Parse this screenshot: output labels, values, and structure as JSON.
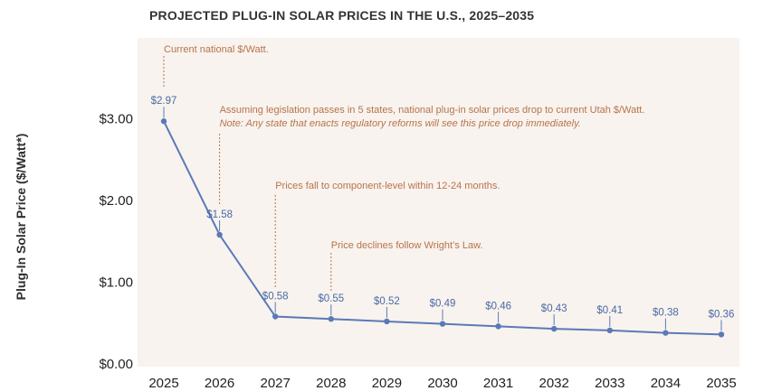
{
  "chart_data": {
    "type": "line",
    "title": "PROJECTED PLUG-IN SOLAR PRICES IN THE U.S., 2025–2035",
    "ylabel": "Plug-In Solar Price ($/Watt*)",
    "xlabel": "",
    "x": [
      "2025",
      "2026",
      "2027",
      "2028",
      "2029",
      "2030",
      "2031",
      "2032",
      "2033",
      "2034",
      "2035"
    ],
    "series": [
      {
        "values": [
          2.97,
          1.58,
          0.58,
          0.55,
          0.52,
          0.49,
          0.46,
          0.43,
          0.41,
          0.38,
          0.36
        ],
        "labels": [
          "$2.97",
          "$1.58",
          "$0.58",
          "$0.55",
          "$0.52",
          "$0.49",
          "$0.46",
          "$0.43",
          "$0.41",
          "$0.38",
          "$0.36"
        ]
      }
    ],
    "ylim": [
      0,
      3.55
    ],
    "yticks": [
      0,
      1,
      2,
      3
    ],
    "ytick_labels": [
      "$0.00",
      "$1.00",
      "$2.00",
      "$3.00"
    ],
    "grid": false,
    "annotations": [
      {
        "x_index": 0,
        "lines": [
          "Current national $/Watt."
        ],
        "italic_lines": []
      },
      {
        "x_index": 1,
        "lines": [
          "Assuming legislation passes in 5 states, national plug-in solar prices drop to current Utah $/Watt."
        ],
        "italic_lines": [
          "Note: Any state that enacts regulatory reforms will see this price drop immediately."
        ]
      },
      {
        "x_index": 2,
        "lines": [
          "Prices fall to component-level within 12-24 months."
        ],
        "italic_lines": []
      },
      {
        "x_index": 3,
        "lines": [
          "Price declines follow Wright’s Law."
        ],
        "italic_lines": []
      }
    ],
    "colors": {
      "line": "#5b79b8",
      "marker": "#5b79b8",
      "data_label": "#4a6aa6",
      "annotation": "#b8734a",
      "plot_background": "#f8f3ee"
    }
  }
}
